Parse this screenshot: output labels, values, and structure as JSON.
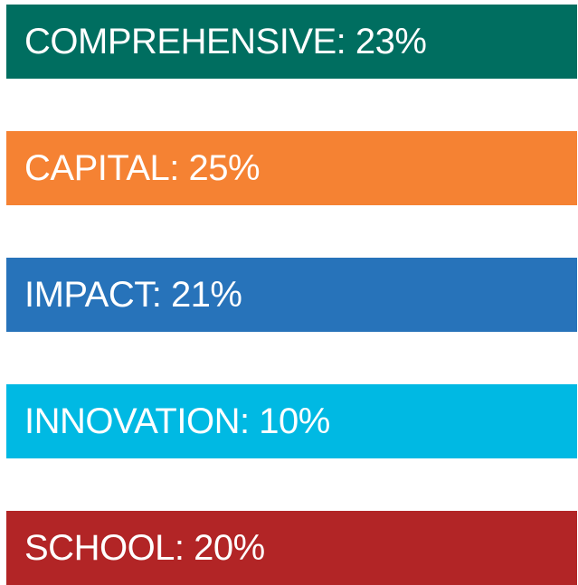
{
  "items": [
    {
      "text": "COMPREHENSIVE: 23%",
      "color": "#006e60"
    },
    {
      "text": "CAPITAL: 25%",
      "color": "#f58233"
    },
    {
      "text": "IMPACT: 21%",
      "color": "#2773ba"
    },
    {
      "text": "INNOVATION: 10%",
      "color": "#00b9e3"
    },
    {
      "text": "SCHOOL: 20%",
      "color": "#b22526"
    }
  ]
}
